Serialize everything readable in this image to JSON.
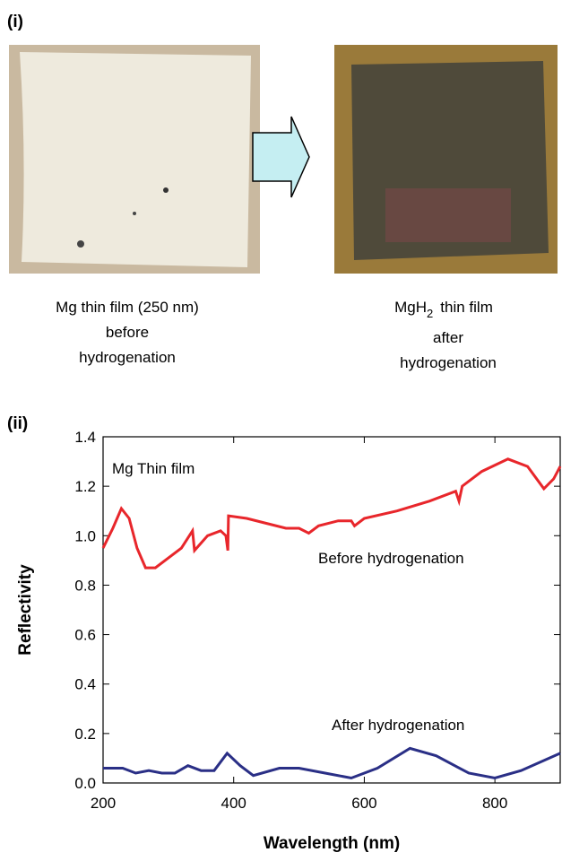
{
  "figure_i": {
    "panel_label": "(i)",
    "left_caption": [
      "Mg thin film (250 nm)",
      "before",
      "hydrogenation"
    ],
    "right_caption": {
      "formula": "MgH",
      "subscript": "2",
      "rest": "thin film",
      "lines": [
        "after",
        "hydrogenation"
      ]
    }
  },
  "chart_data": {
    "type": "line",
    "panel_label": "(ii)",
    "annotation": "Mg Thin film",
    "x_label": "Wavelength (nm)",
    "y_label": "Reflectivity",
    "xlim": [
      200,
      900
    ],
    "xticks": [
      200,
      400,
      600,
      800
    ],
    "ylim": [
      0,
      1.4
    ],
    "yticks": [
      {
        "value": 0,
        "label": "0.0"
      },
      0.2,
      0.4,
      0.6,
      0.8,
      {
        "value": 1,
        "label": "1.0"
      },
      1.2,
      1.4
    ],
    "series": [
      {
        "name": "Before hydrogenation",
        "color": "#e8262b",
        "x": [
          200,
          215,
          228,
          240,
          252,
          265,
          280,
          300,
          320,
          337,
          340,
          360,
          380,
          388,
          391,
          392,
          420,
          450,
          480,
          500,
          515,
          530,
          560,
          580,
          585,
          600,
          650,
          700,
          740,
          745,
          750,
          780,
          820,
          850,
          875,
          890,
          900
        ],
        "values": [
          0.95,
          1.03,
          1.11,
          1.07,
          0.95,
          0.87,
          0.87,
          0.91,
          0.95,
          1.02,
          0.94,
          1.0,
          1.02,
          1.0,
          0.94,
          1.08,
          1.07,
          1.05,
          1.03,
          1.03,
          1.01,
          1.04,
          1.06,
          1.06,
          1.04,
          1.07,
          1.1,
          1.14,
          1.18,
          1.14,
          1.2,
          1.26,
          1.31,
          1.28,
          1.19,
          1.23,
          1.28
        ]
      },
      {
        "name": "After hydrogenation",
        "color": "#2a2f86",
        "x": [
          200,
          230,
          250,
          270,
          290,
          310,
          330,
          350,
          370,
          390,
          410,
          430,
          470,
          500,
          540,
          580,
          620,
          670,
          710,
          760,
          800,
          840,
          900
        ],
        "values": [
          0.06,
          0.06,
          0.04,
          0.05,
          0.04,
          0.04,
          0.07,
          0.05,
          0.05,
          0.12,
          0.07,
          0.03,
          0.06,
          0.06,
          0.04,
          0.02,
          0.06,
          0.14,
          0.11,
          0.04,
          0.02,
          0.05,
          0.12
        ]
      }
    ]
  }
}
